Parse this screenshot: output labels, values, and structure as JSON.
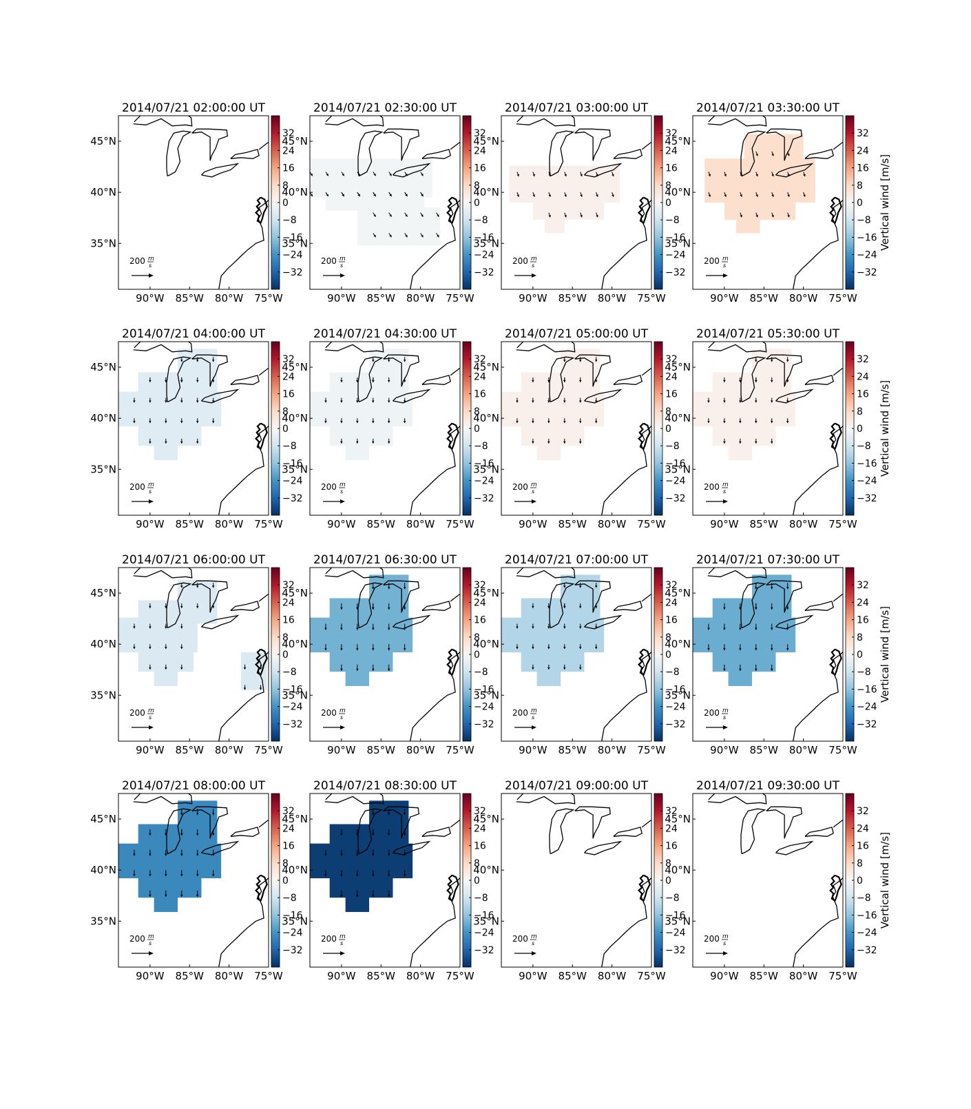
{
  "figure": {
    "lon_ticks": [
      "90°W",
      "85°W",
      "80°W",
      "75°W"
    ],
    "lat_ticks": [
      "45°N",
      "40°N",
      "35°N"
    ],
    "colorbar": {
      "label": "Vertical wind [m/s]",
      "ticks": [
        "32",
        "24",
        "16",
        "8",
        "0",
        "−8",
        "−16",
        "−24",
        "−32"
      ],
      "tick_values": [
        32,
        24,
        16,
        8,
        0,
        -8,
        -16,
        -24,
        -32
      ],
      "range": [
        -40,
        40
      ],
      "colormap": "RdBu_r",
      "stops": [
        "#053061",
        "#2166ac",
        "#4393c3",
        "#92c5de",
        "#d1e5f0",
        "#f7f7f7",
        "#fddbc7",
        "#f4a582",
        "#d6604d",
        "#b2182b",
        "#67001f"
      ]
    },
    "scale_arrow": {
      "label": "200 m/s",
      "number": "200",
      "unit_top": "m",
      "unit_bottom": "s"
    }
  },
  "chart_data": {
    "type": "map",
    "projection": "lon/lat",
    "extent": {
      "lon": [
        -94,
        -75
      ],
      "lat": [
        30.5,
        47.5
      ]
    },
    "title_suffix": "UT",
    "panels": [
      {
        "title": "2014/07/21 02:00:00 UT",
        "vertical_wind": null,
        "coverage": "none",
        "colorbar_label_shown": false,
        "wind_direction": "none"
      },
      {
        "title": "2014/07/21 02:30:00 UT",
        "vertical_wind": -1,
        "coverage": "wide_southern",
        "colorbar_label_shown": false,
        "wind_direction": "southeast"
      },
      {
        "title": "2014/07/21 03:00:00 UT",
        "vertical_wind": 2,
        "coverage": "central",
        "colorbar_label_shown": false,
        "wind_direction": "south-southeast"
      },
      {
        "title": "2014/07/21 03:30:00 UT",
        "vertical_wind": 7,
        "coverage": "central_north",
        "colorbar_label_shown": true,
        "wind_direction": "south-southeast"
      },
      {
        "title": "2014/07/21 04:00:00 UT",
        "vertical_wind": -5,
        "coverage": "west_central",
        "colorbar_label_shown": false,
        "wind_direction": "south"
      },
      {
        "title": "2014/07/21 04:30:00 UT",
        "vertical_wind": -2,
        "coverage": "west_central",
        "colorbar_label_shown": false,
        "wind_direction": "south"
      },
      {
        "title": "2014/07/21 05:00:00 UT",
        "vertical_wind": 2,
        "coverage": "west_central",
        "colorbar_label_shown": false,
        "wind_direction": "south"
      },
      {
        "title": "2014/07/21 05:30:00 UT",
        "vertical_wind": 2,
        "coverage": "west_central",
        "colorbar_label_shown": true,
        "wind_direction": "south"
      },
      {
        "title": "2014/07/21 06:00:00 UT",
        "vertical_wind": -6,
        "coverage": "west_plus_east_patch",
        "colorbar_label_shown": false,
        "wind_direction": "south"
      },
      {
        "title": "2014/07/21 06:30:00 UT",
        "vertical_wind": -19,
        "coverage": "west_central",
        "colorbar_label_shown": false,
        "wind_direction": "south"
      },
      {
        "title": "2014/07/21 07:00:00 UT",
        "vertical_wind": -12,
        "coverage": "west_central",
        "colorbar_label_shown": false,
        "wind_direction": "south"
      },
      {
        "title": "2014/07/21 07:30:00 UT",
        "vertical_wind": -20,
        "coverage": "west_central",
        "colorbar_label_shown": true,
        "wind_direction": "south"
      },
      {
        "title": "2014/07/21 08:00:00 UT",
        "vertical_wind": -26,
        "coverage": "west_central",
        "colorbar_label_shown": false,
        "wind_direction": "south"
      },
      {
        "title": "2014/07/21 08:30:00 UT",
        "vertical_wind": -38,
        "coverage": "west_central",
        "colorbar_label_shown": false,
        "wind_direction": "south"
      },
      {
        "title": "2014/07/21 09:00:00 UT",
        "vertical_wind": null,
        "coverage": "none",
        "colorbar_label_shown": false,
        "wind_direction": "none"
      },
      {
        "title": "2014/07/21 09:30:00 UT",
        "vertical_wind": null,
        "coverage": "none",
        "colorbar_label_shown": true,
        "wind_direction": "none"
      }
    ]
  }
}
